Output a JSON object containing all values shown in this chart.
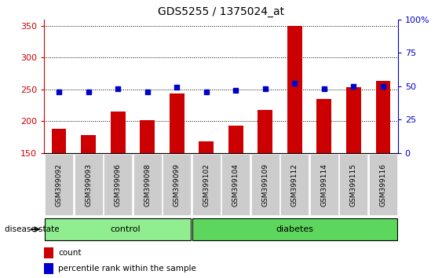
{
  "title": "GDS5255 / 1375024_at",
  "samples": [
    "GSM399092",
    "GSM399093",
    "GSM399096",
    "GSM399098",
    "GSM399099",
    "GSM399102",
    "GSM399104",
    "GSM399109",
    "GSM399112",
    "GSM399114",
    "GSM399115",
    "GSM399116"
  ],
  "counts": [
    188,
    178,
    215,
    201,
    244,
    168,
    193,
    217,
    350,
    235,
    254,
    263
  ],
  "percentiles": [
    46,
    46,
    48,
    46,
    49,
    46,
    47,
    48,
    52,
    48,
    50,
    50
  ],
  "ylim_left": [
    150,
    360
  ],
  "ylim_right": [
    0,
    100
  ],
  "yticks_left": [
    150,
    200,
    250,
    300,
    350
  ],
  "yticks_right": [
    0,
    25,
    50,
    75,
    100
  ],
  "ytick_labels_right": [
    "0",
    "25",
    "50",
    "75",
    "100%"
  ],
  "bar_color": "#CC0000",
  "dot_color": "#0000CC",
  "grid_color": "#000000",
  "n_control": 5,
  "control_color": "#90EE90",
  "diabetes_color": "#5CD65C",
  "disease_label": "disease state",
  "control_label": "control",
  "diabetes_label": "diabetes",
  "legend_count": "count",
  "legend_percentile": "percentile rank within the sample",
  "tick_bg": "#CCCCCC",
  "bar_width": 0.5,
  "bg_color": "#FFFFFF"
}
